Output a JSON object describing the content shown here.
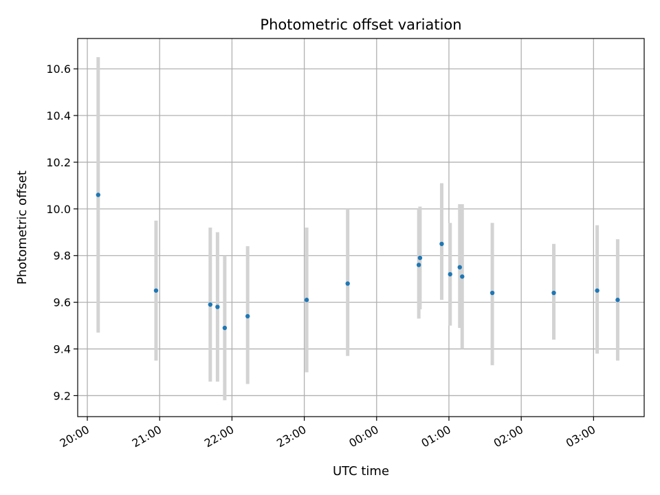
{
  "chart_data": {
    "type": "scatter",
    "title": "Photometric offset variation",
    "xlabel": "UTC time",
    "ylabel": "Photometric offset",
    "x_axis": {
      "kind": "time",
      "range": [
        "19:52",
        "03:42 (+1 day)"
      ],
      "ticks": [
        "20:00",
        "21:00",
        "22:00",
        "23:00",
        "00:00",
        "01:00",
        "02:00",
        "03:00"
      ]
    },
    "ylim": [
      9.11,
      10.73
    ],
    "yticks": [
      "9.2",
      "9.4",
      "9.6",
      "9.8",
      "10.0",
      "10.2",
      "10.4",
      "10.6"
    ],
    "grid": true,
    "colors": {
      "point": "#1f77b4",
      "errorbar": "#d3d3d3",
      "grid": "#b0b0b0"
    },
    "series": [
      {
        "points": [
          {
            "t": "20:09",
            "y": 10.06,
            "lo": 9.47,
            "hi": 10.65
          },
          {
            "t": "20:57",
            "y": 9.65,
            "lo": 9.35,
            "hi": 9.95
          },
          {
            "t": "21:42",
            "y": 9.59,
            "lo": 9.26,
            "hi": 9.92
          },
          {
            "t": "21:48",
            "y": 9.58,
            "lo": 9.26,
            "hi": 9.9
          },
          {
            "t": "21:54",
            "y": 9.49,
            "lo": 9.18,
            "hi": 9.8
          },
          {
            "t": "22:13",
            "y": 9.54,
            "lo": 9.25,
            "hi": 9.84
          },
          {
            "t": "23:02",
            "y": 9.61,
            "lo": 9.3,
            "hi": 9.92
          },
          {
            "t": "23:36",
            "y": 9.68,
            "lo": 9.37,
            "hi": 10.0
          },
          {
            "t": "00:35",
            "y": 9.76,
            "lo": 9.53,
            "hi": 10.0
          },
          {
            "t": "00:36",
            "y": 9.79,
            "lo": 9.57,
            "hi": 10.01
          },
          {
            "t": "00:54",
            "y": 9.85,
            "lo": 9.61,
            "hi": 10.11
          },
          {
            "t": "01:01",
            "y": 9.72,
            "lo": 9.5,
            "hi": 9.94
          },
          {
            "t": "01:09",
            "y": 9.75,
            "lo": 9.49,
            "hi": 10.02
          },
          {
            "t": "01:11",
            "y": 9.71,
            "lo": 9.4,
            "hi": 10.02
          },
          {
            "t": "01:36",
            "y": 9.64,
            "lo": 9.33,
            "hi": 9.94
          },
          {
            "t": "02:27",
            "y": 9.64,
            "lo": 9.44,
            "hi": 9.85
          },
          {
            "t": "03:03",
            "y": 9.65,
            "lo": 9.38,
            "hi": 9.93
          },
          {
            "t": "03:20",
            "y": 9.61,
            "lo": 9.35,
            "hi": 9.87
          }
        ]
      }
    ]
  }
}
